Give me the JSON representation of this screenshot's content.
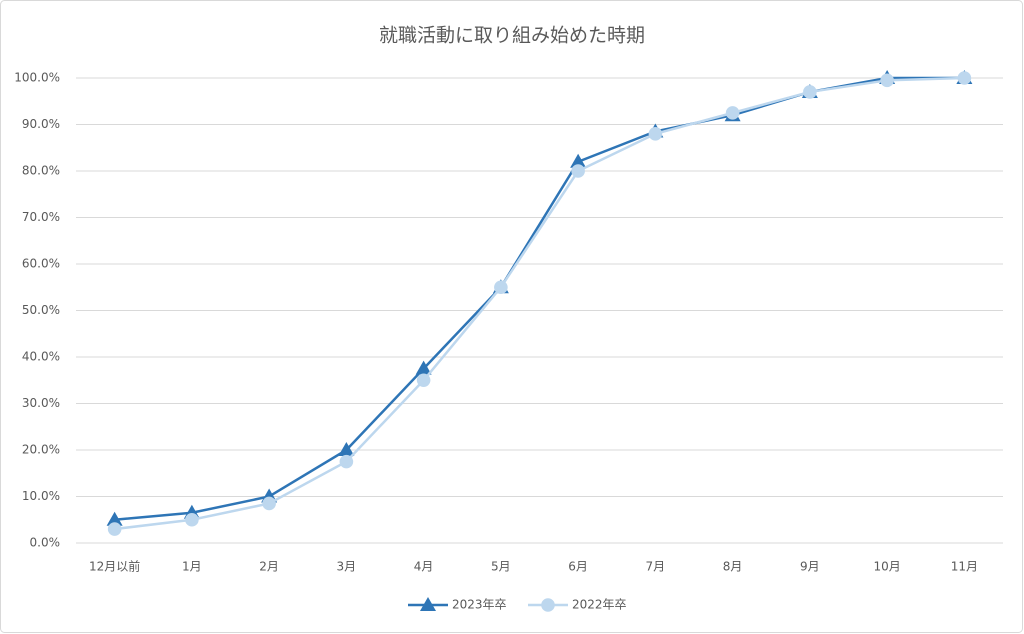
{
  "chart_data": {
    "type": "line",
    "title": "就職活動に取り組み始めた時期",
    "categories": [
      "12月以前",
      "1月",
      "2月",
      "3月",
      "4月",
      "5月",
      "6月",
      "7月",
      "8月",
      "9月",
      "10月",
      "11月"
    ],
    "series": [
      {
        "name": "2023年卒",
        "color": "#2e75b6",
        "marker": "triangle",
        "values": [
          5.0,
          6.5,
          10.0,
          20.0,
          37.5,
          55.0,
          82.0,
          88.5,
          92.0,
          97.0,
          100.0,
          100.0
        ]
      },
      {
        "name": "2022年卒",
        "color": "#bdd7ee",
        "marker": "circle",
        "values": [
          3.0,
          5.0,
          8.5,
          17.5,
          35.0,
          55.0,
          80.0,
          88.0,
          92.5,
          97.0,
          99.5,
          100.0
        ]
      }
    ],
    "ylim": [
      0,
      100
    ],
    "yticks": [
      {
        "value": 0,
        "label": "0.0%"
      },
      {
        "value": 10,
        "label": "10.0%"
      },
      {
        "value": 20,
        "label": "20.0%"
      },
      {
        "value": 30,
        "label": "30.0%"
      },
      {
        "value": 40,
        "label": "40.0%"
      },
      {
        "value": 50,
        "label": "50.0%"
      },
      {
        "value": 60,
        "label": "60.0%"
      },
      {
        "value": 70,
        "label": "70.0%"
      },
      {
        "value": 80,
        "label": "80.0%"
      },
      {
        "value": 90,
        "label": "90.0%"
      },
      {
        "value": 100,
        "label": "100.0%"
      }
    ],
    "grid": true,
    "legend": "bottom"
  }
}
